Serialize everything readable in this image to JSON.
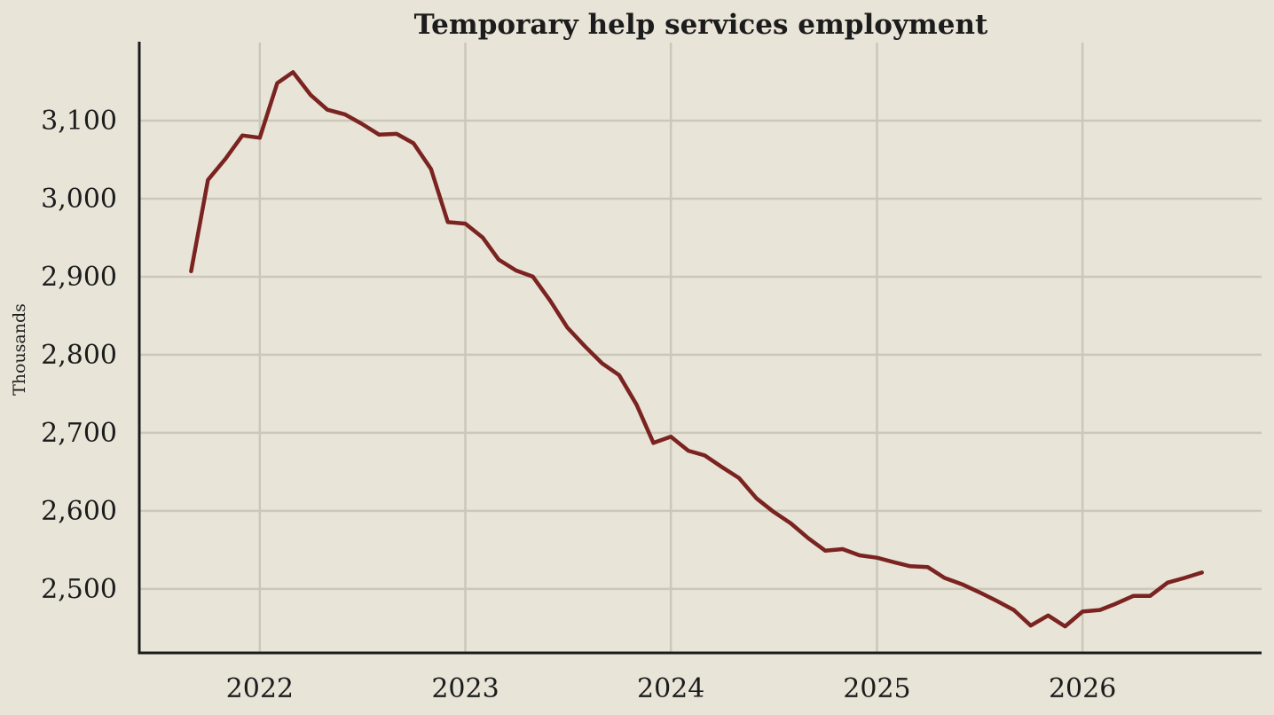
{
  "chart_data": {
    "type": "line",
    "title": "Temporary help services employment",
    "xlabel": "",
    "ylabel": "Thousands",
    "x_ticks": [
      "2022",
      "2023",
      "2024",
      "2025",
      "2026"
    ],
    "y_ticks": [
      "2,500",
      "2,600",
      "2,700",
      "2,800",
      "2,900",
      "3,000",
      "3,100"
    ],
    "y_tick_values": [
      2500,
      2600,
      2700,
      2800,
      2900,
      3000,
      3100
    ],
    "xlim": [
      "2021-06-01",
      "2026-11-15"
    ],
    "ylim": [
      2418,
      3200
    ],
    "grid": true,
    "colors": {
      "background": "#e8e4d8",
      "line": "#7a2320",
      "grid": "#cbc7b9",
      "axis": "#1c1c1c"
    },
    "series": [
      {
        "x": [
          "2021-09",
          "2021-10",
          "2021-11",
          "2021-12",
          "2022-01",
          "2022-02",
          "2022-03",
          "2022-04",
          "2022-05",
          "2022-06",
          "2022-07",
          "2022-08",
          "2022-09",
          "2022-10",
          "2022-11",
          "2022-12",
          "2023-01",
          "2023-02",
          "2023-03",
          "2023-04",
          "2023-05",
          "2023-06",
          "2023-07",
          "2023-08",
          "2023-09",
          "2023-10",
          "2023-11",
          "2023-12",
          "2024-01",
          "2024-02",
          "2024-03",
          "2024-04",
          "2024-05",
          "2024-06",
          "2024-07",
          "2024-08",
          "2024-09",
          "2024-10",
          "2024-11",
          "2024-12",
          "2025-01",
          "2025-02",
          "2025-03",
          "2025-04",
          "2025-05",
          "2025-06",
          "2025-07",
          "2025-08",
          "2025-09",
          "2025-10",
          "2025-11",
          "2025-12",
          "2026-01",
          "2026-02",
          "2026-03",
          "2026-04",
          "2026-05",
          "2026-06",
          "2026-07",
          "2026-08"
        ],
        "values": [
          2907,
          3024,
          3051,
          3081,
          3078,
          3148,
          3162,
          3133,
          3114,
          3108,
          3096,
          3082,
          3083,
          3071,
          3038,
          2970,
          2968,
          2950,
          2922,
          2908,
          2900,
          2869,
          2835,
          2811,
          2789,
          2774,
          2736,
          2687,
          2695,
          2677,
          2671,
          2656,
          2642,
          2616,
          2599,
          2584,
          2565,
          2549,
          2551,
          2543,
          2540,
          2534,
          2529,
          2528,
          2514,
          2506,
          2496,
          2485,
          2473,
          2453,
          2466,
          2452,
          2471,
          2473,
          2481,
          2491,
          2491,
          2508,
          2514,
          2521
        ]
      }
    ]
  }
}
